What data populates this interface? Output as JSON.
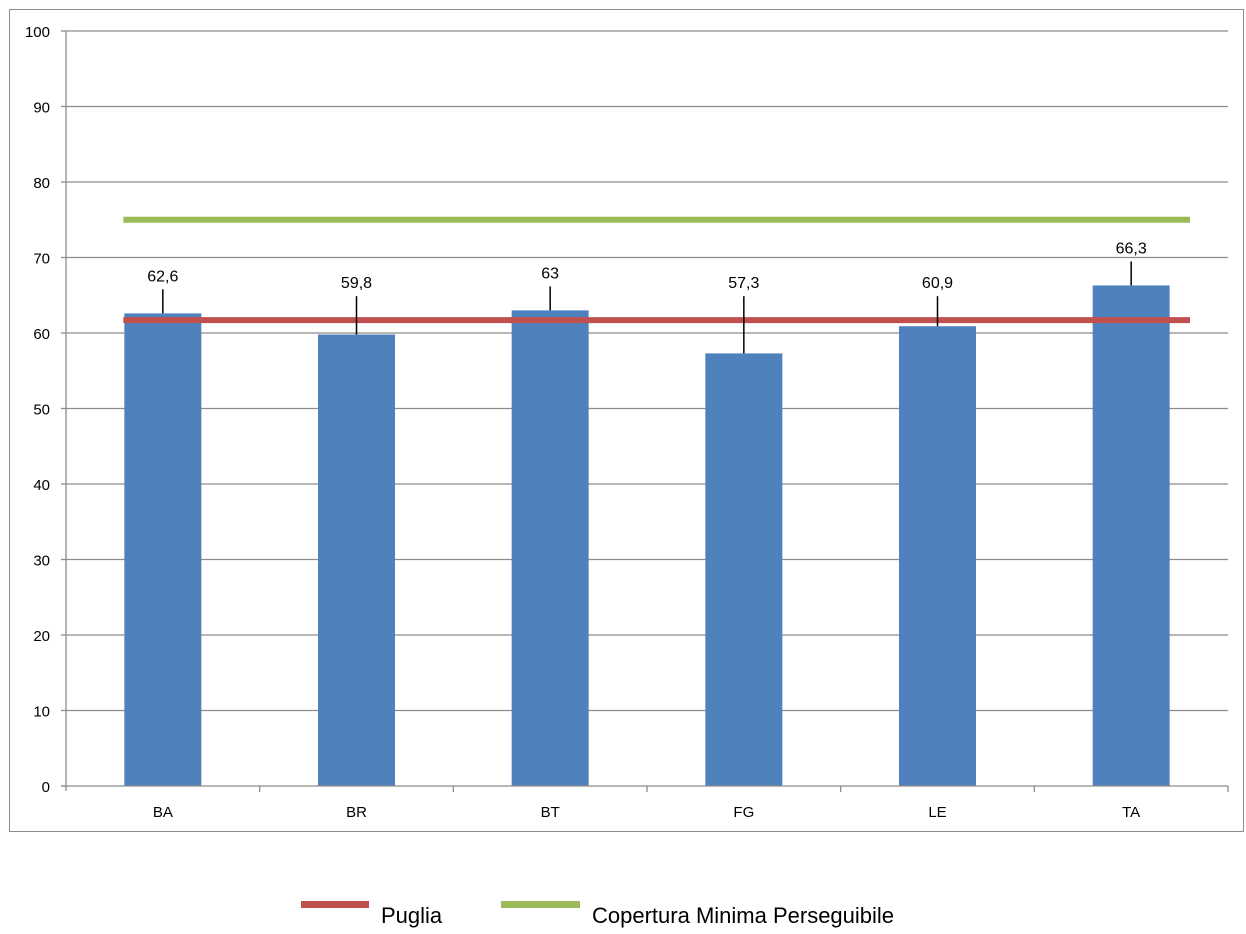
{
  "chart_data": {
    "type": "bar",
    "categories": [
      "BA",
      "BR",
      "BT",
      "FG",
      "LE",
      "TA"
    ],
    "values": [
      62.6,
      59.8,
      63,
      57.3,
      60.9,
      66.3
    ],
    "data_labels": [
      "62,6",
      "59,8",
      "63",
      "57,3",
      "60,9",
      "66,3"
    ],
    "title": "",
    "xlabel": "",
    "ylabel": "",
    "ylim": [
      0,
      100
    ],
    "yticks": [
      0,
      10,
      20,
      30,
      40,
      50,
      60,
      70,
      80,
      90,
      100
    ],
    "grid": true,
    "reference_lines": [
      {
        "name": "Puglia",
        "value": 61.7,
        "color": "#c0504d"
      },
      {
        "name": "Copertura Minima Perseguibile",
        "value": 75,
        "color": "#9bbb59"
      }
    ],
    "bar_color": "#4f81bd",
    "legend_position": "bottom"
  }
}
